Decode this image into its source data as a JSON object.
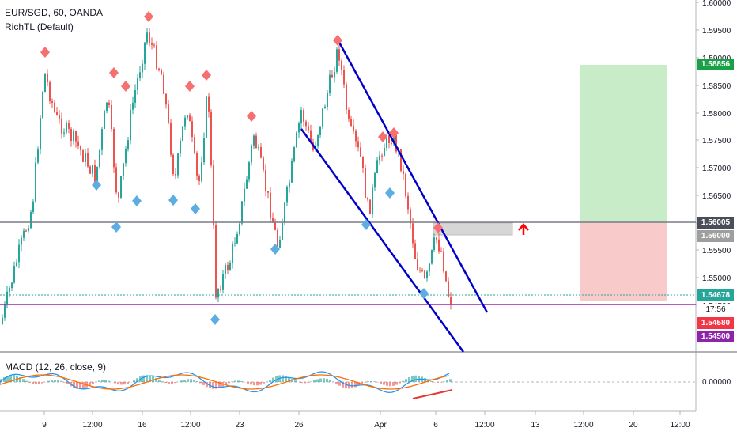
{
  "symbol_title": "EUR/SGD, 60, OANDA",
  "indicator_label": "RichTL (Default)",
  "macd_label": "MACD (12, 26, close, 9)",
  "macd_zero_label": "0.00000",
  "colors": {
    "up_candle": "#26a69a",
    "down_candle": "#ef5350",
    "channel": "#0000cc",
    "support_line": "#9c27b0",
    "level_line": "#787b86",
    "target_zone": "#c8ebc8",
    "stop_zone": "#f8caca",
    "high_marker": "#f77070",
    "low_marker": "#5dade2",
    "arrow": "#ff0000",
    "macd_line": "#2196f3",
    "signal_line": "#ff6d00"
  },
  "price_axis": {
    "labels": [
      "1.60000",
      "1.59500",
      "1.59000",
      "1.58500",
      "1.58000",
      "1.57500",
      "1.57000",
      "1.56500",
      "1.56000",
      "1.55500",
      "1.55000",
      "1.54500"
    ]
  },
  "price_badges": {
    "target": "1.58856",
    "level_dark": "1.56005",
    "level_gray": "1.56000",
    "current_price": "1.54678",
    "countdown": "17:56",
    "stop": "1.54580",
    "support": "1.54500"
  },
  "time_axis": {
    "labels": [
      "9",
      "12:00",
      "16",
      "12:00",
      "23",
      "26",
      "Apr",
      "6",
      "12:00",
      "13",
      "12:00",
      "20",
      "12:00"
    ]
  },
  "chart_data": {
    "type": "candlestick",
    "title": "EUR/SGD, 60, OANDA",
    "yrange": [
      1.539,
      1.6
    ],
    "levels": {
      "horizontal_resistance": 1.56005,
      "support": 1.545,
      "current_price": 1.54678,
      "target": 1.58856,
      "stop": 1.5458
    },
    "swing_highs": [
      1.5905,
      1.5873,
      1.5853,
      1.5974,
      1.5853,
      1.5868,
      1.5792,
      1.5925,
      1.5752,
      1.5761,
      1.5598
    ],
    "swing_lows": [
      1.5667,
      1.5597,
      1.5635,
      1.5637,
      1.5623,
      1.5545,
      1.5468,
      1.5598,
      1.5651,
      1.5471
    ]
  }
}
